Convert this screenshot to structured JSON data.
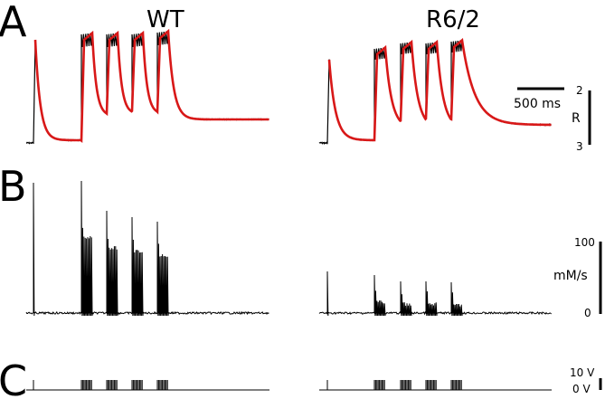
{
  "panels": {
    "A": "A",
    "B": "B",
    "C": "C"
  },
  "conditions": {
    "left": "WT",
    "right": "R6/2"
  },
  "scalebars": {
    "time": "500 ms",
    "ratio_label": "R",
    "ratio_top": "2",
    "ratio_bottom": "3",
    "flux_label": "mM/s",
    "flux_top": "100",
    "flux_bottom": "0",
    "volt_top": "10 V",
    "volt_bottom": "0 V"
  },
  "colors": {
    "trace": "#000000",
    "fit": "#d81818"
  }
}
